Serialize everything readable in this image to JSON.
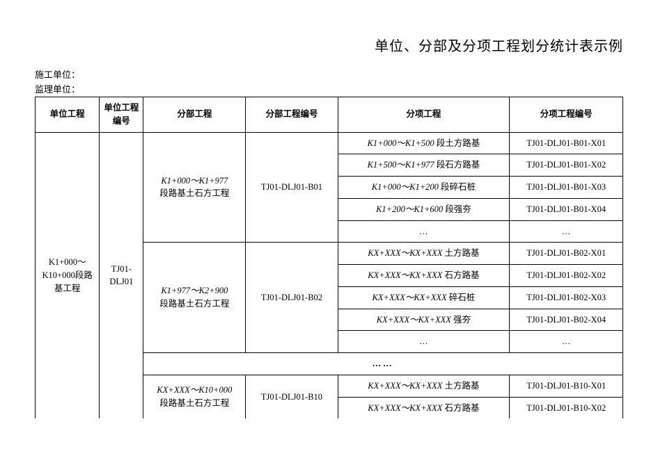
{
  "title": "单位、分部及分项工程划分统计表示例",
  "meta": {
    "construct_label": "施工单位：",
    "supervise_label": "监理单位："
  },
  "headers": {
    "unit_project": "单位工程",
    "unit_code": "单位工程编号",
    "section_project": "分部工程",
    "section_code": "分部工程编号",
    "item_project": "分项工程",
    "item_code": "分项工程编号"
  },
  "unit": {
    "name_l1": "K1+000～",
    "name_l2": "K10+000段路",
    "name_l3": "基工程",
    "code_l1": "TJ01-",
    "code_l2": "DLJ01"
  },
  "groups": [
    {
      "section_l1": "K1+000～K1+977",
      "section_l2": "段路基土石方工程",
      "section_code": "TJ01-DLJ01-B01",
      "rows": [
        {
          "item_it": "K1+000～K1+500 ",
          "item_tail": "段土方路基",
          "code": "TJ01-DLJ01-B01-X01"
        },
        {
          "item_it": "K1+500～K1+977 ",
          "item_tail": "段石方路基",
          "code": "TJ01-DLJ01-B01-X02"
        },
        {
          "item_it": "K1+000～K1+200 ",
          "item_tail": "段碎石桩",
          "code": "TJ01-DLJ01-B01-X03"
        },
        {
          "item_it": "K1+200～K1+600 ",
          "item_tail": "段强夯",
          "code": "TJ01-DLJ01-B01-X04"
        },
        {
          "item_it": "",
          "item_tail": "…",
          "code": "…"
        }
      ]
    },
    {
      "section_l1": "K1+977～K2+900",
      "section_l2": "段路基土石方工程",
      "section_code": "TJ01-DLJ01-B02",
      "rows": [
        {
          "item_it": "KX+XXX～KX+XXX ",
          "item_tail": "土方路基",
          "code": "TJ01-DLJ01-B02-X01"
        },
        {
          "item_it": "KX+XXX～KX+XXX ",
          "item_tail": "石方路基",
          "code": "TJ01-DLJ01-B02-X02"
        },
        {
          "item_it": "KX+XXX～KX+XXX ",
          "item_tail": "碎石桩",
          "code": "TJ01-DLJ01-B02-X03"
        },
        {
          "item_it": "KX+XXX～KX+XXX ",
          "item_tail": "强夯",
          "code": "TJ01-DLJ01-B02-X04"
        },
        {
          "item_it": "",
          "item_tail": "…",
          "code": "…"
        }
      ]
    }
  ],
  "separator": "……",
  "group3": {
    "section_l1": "KX+XXX～K10+000",
    "section_l2": "段路基土石方工程",
    "section_code": "TJ01-DLJ01-B10",
    "rows": [
      {
        "item_it": "KX+XXX～KX+XXX ",
        "item_tail": "土方路基",
        "code": "TJ01-DLJ01-B10-X01"
      },
      {
        "item_it": "KX+XXX～KX+XXX ",
        "item_tail": "石方路基",
        "code": "TJ01-DLJ01-B10-X02"
      }
    ]
  },
  "style": {
    "border_color": "#000000",
    "bg_color": "#ffffff",
    "title_fontsize": 20,
    "cell_fontsize": 12.5,
    "font_family": "SimSun"
  }
}
